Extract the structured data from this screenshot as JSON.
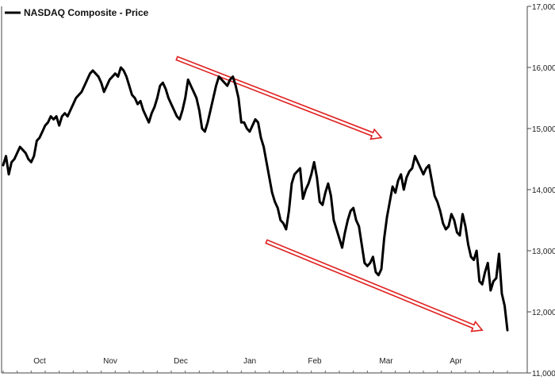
{
  "chart_data": {
    "type": "line",
    "title": "NASDAQ Composite - Price",
    "legend": {
      "label": "NASDAQ Composite - Price",
      "placement": "top-left"
    },
    "xlabel": "",
    "ylabel": "",
    "x_ticks": [
      "Oct",
      "Nov",
      "Dec",
      "Jan",
      "Feb",
      "Mar",
      "Apr"
    ],
    "y_ticks": [
      "11,000",
      "12,000",
      "13,000",
      "14,000",
      "15,000",
      "16,000",
      "17,000"
    ],
    "ylim": [
      11000,
      17000
    ],
    "y_axis_side": "right",
    "grid": false,
    "colors": {
      "line": "#000000",
      "trend_arrows": "#e02020"
    },
    "series": [
      {
        "values": [
          14400,
          14550,
          14250,
          14450,
          14500,
          14600,
          14700,
          14650,
          14600,
          14500,
          14450,
          14550,
          14800,
          14850,
          14950,
          15050,
          15100,
          15200,
          15150,
          15200,
          15050,
          15200,
          15250,
          15200,
          15300,
          15400,
          15500,
          15550,
          15600,
          15700,
          15800,
          15900,
          15950,
          15900,
          15850,
          15750,
          15600,
          15700,
          15800,
          15850,
          15900,
          15850,
          16000,
          15950,
          15850,
          15700,
          15550,
          15500,
          15400,
          15450,
          15300,
          15200,
          15100,
          15250,
          15350,
          15500,
          15700,
          15750,
          15650,
          15500,
          15400,
          15300,
          15200,
          15150,
          15300,
          15500,
          15800,
          15700,
          15600,
          15500,
          15300,
          15000,
          14950,
          15100,
          15300,
          15500,
          15700,
          15850,
          15800,
          15750,
          15700,
          15800,
          15850,
          15700,
          15500,
          15100,
          15100,
          15000,
          14950,
          15050,
          15150,
          15100,
          14850,
          14700,
          14450,
          14200,
          13950,
          13800,
          13700,
          13500,
          13450,
          13350,
          13650,
          14100,
          14250,
          14300,
          14350,
          13850,
          14000,
          14100,
          14250,
          14450,
          14200,
          13800,
          13750,
          13950,
          14100,
          13900,
          13500,
          13350,
          13200,
          13050,
          13300,
          13500,
          13650,
          13700,
          13500,
          13400,
          13100,
          12800,
          12750,
          12800,
          12900,
          12650,
          12600,
          12700,
          13200,
          13550,
          13800,
          14050,
          13950,
          14150,
          14250,
          14000,
          14200,
          14300,
          14350,
          14550,
          14450,
          14350,
          14250,
          14350,
          14400,
          14150,
          13900,
          13800,
          13650,
          13450,
          13350,
          13400,
          13600,
          13500,
          13300,
          13250,
          13600,
          13400,
          13100,
          12900,
          12850,
          13000,
          12500,
          12450,
          12650,
          12800,
          12350,
          12500,
          12550,
          12950,
          12300,
          12100,
          11700
        ]
      }
    ],
    "annotations": [
      {
        "type": "arrow",
        "from": {
          "index": 62,
          "value": 16150
        },
        "to": {
          "index": 135,
          "value": 14850
        }
      },
      {
        "type": "arrow",
        "from": {
          "index": 94,
          "value": 13150
        },
        "to": {
          "index": 171,
          "value": 11700
        }
      }
    ]
  }
}
